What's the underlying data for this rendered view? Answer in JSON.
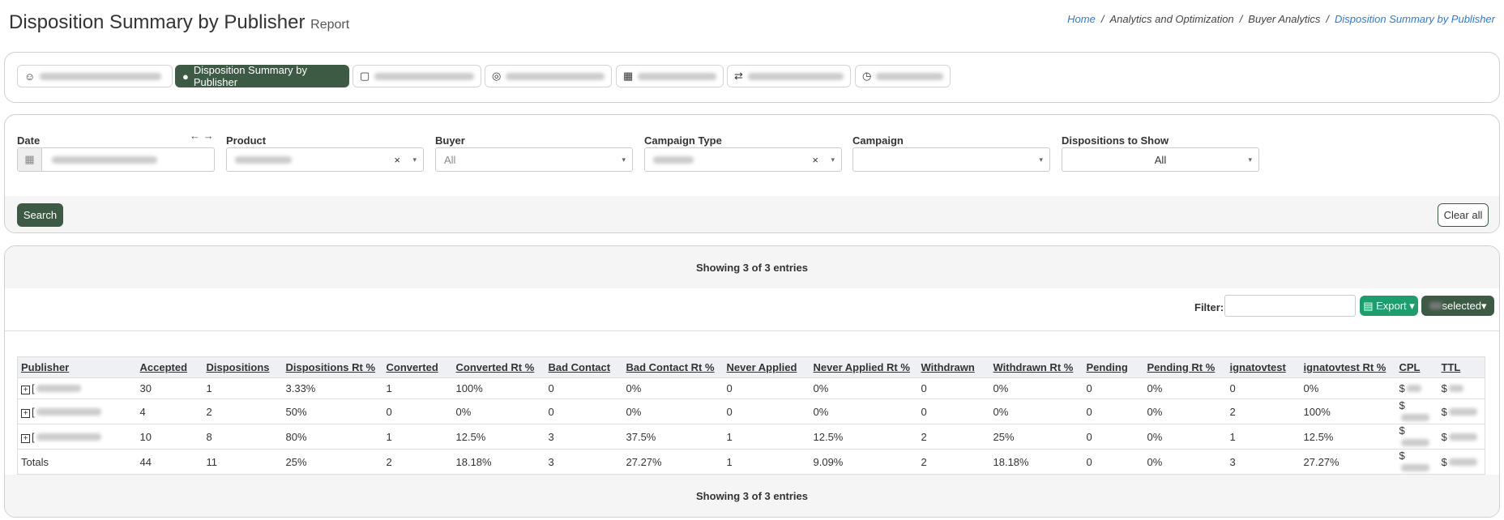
{
  "header": {
    "title": "Disposition Summary by Publisher",
    "subtitle": "Report",
    "breadcrumbs": [
      "Home",
      "Analytics and Optimization",
      "Buyer Analytics",
      "Disposition Summary by Publisher"
    ]
  },
  "tabs": {
    "active": "Disposition Summary by Publisher"
  },
  "filters": {
    "labels": [
      "Date",
      "Product",
      "Buyer",
      "Campaign Type",
      "Campaign",
      "Dispositions to Show"
    ],
    "buyer_value": "All",
    "dispositions_value": "All",
    "search": "Search",
    "clear": "Clear all"
  },
  "results": {
    "showing": "Showing 3 of 3 entries",
    "filter_label": "Filter:",
    "export": "Export",
    "selected": "selected"
  },
  "table": {
    "headers": [
      "Publisher",
      "Accepted",
      "Dispositions",
      "Dispositions Rt %",
      "Converted",
      "Converted Rt %",
      "Bad Contact",
      "Bad Contact Rt %",
      "Never Applied",
      "Never Applied Rt %",
      "Withdrawn",
      "Withdrawn Rt %",
      "Pending",
      "Pending Rt %",
      "ignatovtest",
      "ignatovtest Rt %",
      "CPL",
      "TTL"
    ],
    "rows": [
      [
        "[",
        "30",
        "1",
        "3.33%",
        "1",
        "100%",
        "0",
        "0%",
        "0",
        "0%",
        "0",
        "0%",
        "0",
        "0%",
        "0",
        "0%",
        "$",
        "$"
      ],
      [
        "[",
        "4",
        "2",
        "50%",
        "0",
        "0%",
        "0",
        "0%",
        "0",
        "0%",
        "0",
        "0%",
        "0",
        "0%",
        "2",
        "100%",
        "$",
        "$"
      ],
      [
        "[",
        "10",
        "8",
        "80%",
        "1",
        "12.5%",
        "3",
        "37.5%",
        "1",
        "12.5%",
        "2",
        "25%",
        "0",
        "0%",
        "1",
        "12.5%",
        "$",
        "$"
      ],
      [
        "Totals",
        "44",
        "11",
        "25%",
        "2",
        "18.18%",
        "3",
        "27.27%",
        "1",
        "9.09%",
        "2",
        "18.18%",
        "0",
        "0%",
        "3",
        "27.27%",
        "$",
        "$"
      ]
    ]
  }
}
